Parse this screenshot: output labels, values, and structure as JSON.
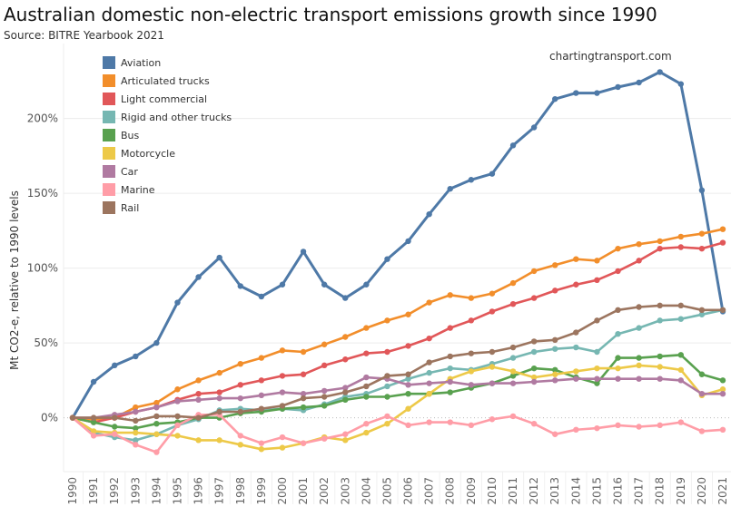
{
  "chart_data": {
    "type": "line",
    "title": "Australian domestic non-electric transport emissions growth since 1990",
    "subtitle": "Source: BITRE Yearbook 2021",
    "watermark": "chartingtransport.com",
    "ylabel": "Mt CO2-e, relative to 1990 levels",
    "xlabel": "",
    "ylim": [
      -36,
      244
    ],
    "yticks": [
      0,
      50,
      100,
      150,
      200
    ],
    "ytick_labels": [
      "0%",
      "50%",
      "100%",
      "150%",
      "200%"
    ],
    "grid": true,
    "legend_position": "top-left",
    "x": [
      1990,
      1991,
      1992,
      1993,
      1994,
      1995,
      1996,
      1997,
      1998,
      1999,
      2000,
      2001,
      2002,
      2003,
      2004,
      2005,
      2006,
      2007,
      2008,
      2009,
      2010,
      2011,
      2012,
      2013,
      2014,
      2015,
      2016,
      2017,
      2018,
      2019,
      2020,
      2021
    ],
    "series": [
      {
        "name": "Aviation",
        "color": "#4e79a7",
        "values": [
          0,
          24,
          35,
          41,
          50,
          77,
          94,
          107,
          88,
          81,
          89,
          111,
          89,
          80,
          89,
          106,
          118,
          136,
          153,
          159,
          163,
          182,
          194,
          213,
          217,
          217,
          221,
          224,
          231,
          223,
          152,
          71
        ]
      },
      {
        "name": "Articulated trucks",
        "color": "#f28e2b",
        "values": [
          0,
          -1,
          0,
          7,
          10,
          19,
          25,
          30,
          36,
          40,
          45,
          44,
          49,
          54,
          60,
          65,
          69,
          77,
          82,
          80,
          83,
          90,
          98,
          102,
          106,
          105,
          113,
          116,
          118,
          121,
          123,
          126
        ]
      },
      {
        "name": "Light commercial",
        "color": "#e15759",
        "values": [
          0,
          -3,
          0,
          4,
          7,
          12,
          16,
          17,
          22,
          25,
          28,
          29,
          35,
          39,
          43,
          44,
          48,
          53,
          60,
          65,
          71,
          76,
          80,
          85,
          89,
          92,
          98,
          105,
          113,
          114,
          113,
          117
        ]
      },
      {
        "name": "Rigid and other trucks",
        "color": "#76b7b2",
        "values": [
          0,
          -10,
          -13,
          -15,
          -11,
          -5,
          -1,
          5,
          6,
          5,
          6,
          5,
          9,
          14,
          16,
          21,
          26,
          30,
          33,
          32,
          36,
          40,
          44,
          46,
          47,
          44,
          56,
          60,
          65,
          66,
          69,
          72
        ]
      },
      {
        "name": "Bus",
        "color": "#59a14f",
        "values": [
          0,
          -3,
          -6,
          -7,
          -4,
          -3,
          0,
          0,
          3,
          4,
          6,
          7,
          8,
          12,
          14,
          14,
          16,
          16,
          17,
          20,
          23,
          28,
          33,
          32,
          27,
          23,
          40,
          40,
          41,
          42,
          29,
          25
        ]
      },
      {
        "name": "Motorcycle",
        "color": "#edc948",
        "values": [
          0,
          -9,
          -10,
          -10,
          -11,
          -12,
          -15,
          -15,
          -18,
          -21,
          -20,
          -17,
          -13,
          -15,
          -10,
          -4,
          6,
          16,
          26,
          31,
          34,
          31,
          27,
          29,
          31,
          33,
          33,
          35,
          34,
          32,
          15,
          19
        ]
      },
      {
        "name": "Car",
        "color": "#b07aa1",
        "values": [
          0,
          0,
          2,
          4,
          7,
          11,
          12,
          13,
          13,
          15,
          17,
          16,
          18,
          20,
          27,
          26,
          22,
          23,
          24,
          22,
          23,
          23,
          24,
          25,
          26,
          26,
          26,
          26,
          26,
          25,
          16,
          16
        ]
      },
      {
        "name": "Marine",
        "color": "#ff9da7",
        "values": [
          0,
          -12,
          -11,
          -18,
          -23,
          -5,
          2,
          2,
          -12,
          -17,
          -13,
          -17,
          -14,
          -11,
          -4,
          1,
          -5,
          -3,
          -3,
          -5,
          -1,
          1,
          -4,
          -11,
          -8,
          -7,
          -5,
          -6,
          -5,
          -3,
          -9,
          -8
        ]
      },
      {
        "name": "Rail",
        "color": "#9c755f",
        "values": [
          0,
          0,
          0,
          -2,
          1,
          1,
          0,
          4,
          4,
          6,
          8,
          13,
          14,
          17,
          21,
          28,
          29,
          37,
          41,
          43,
          44,
          47,
          51,
          52,
          57,
          65,
          72,
          74,
          75,
          75,
          72,
          72
        ]
      }
    ]
  }
}
